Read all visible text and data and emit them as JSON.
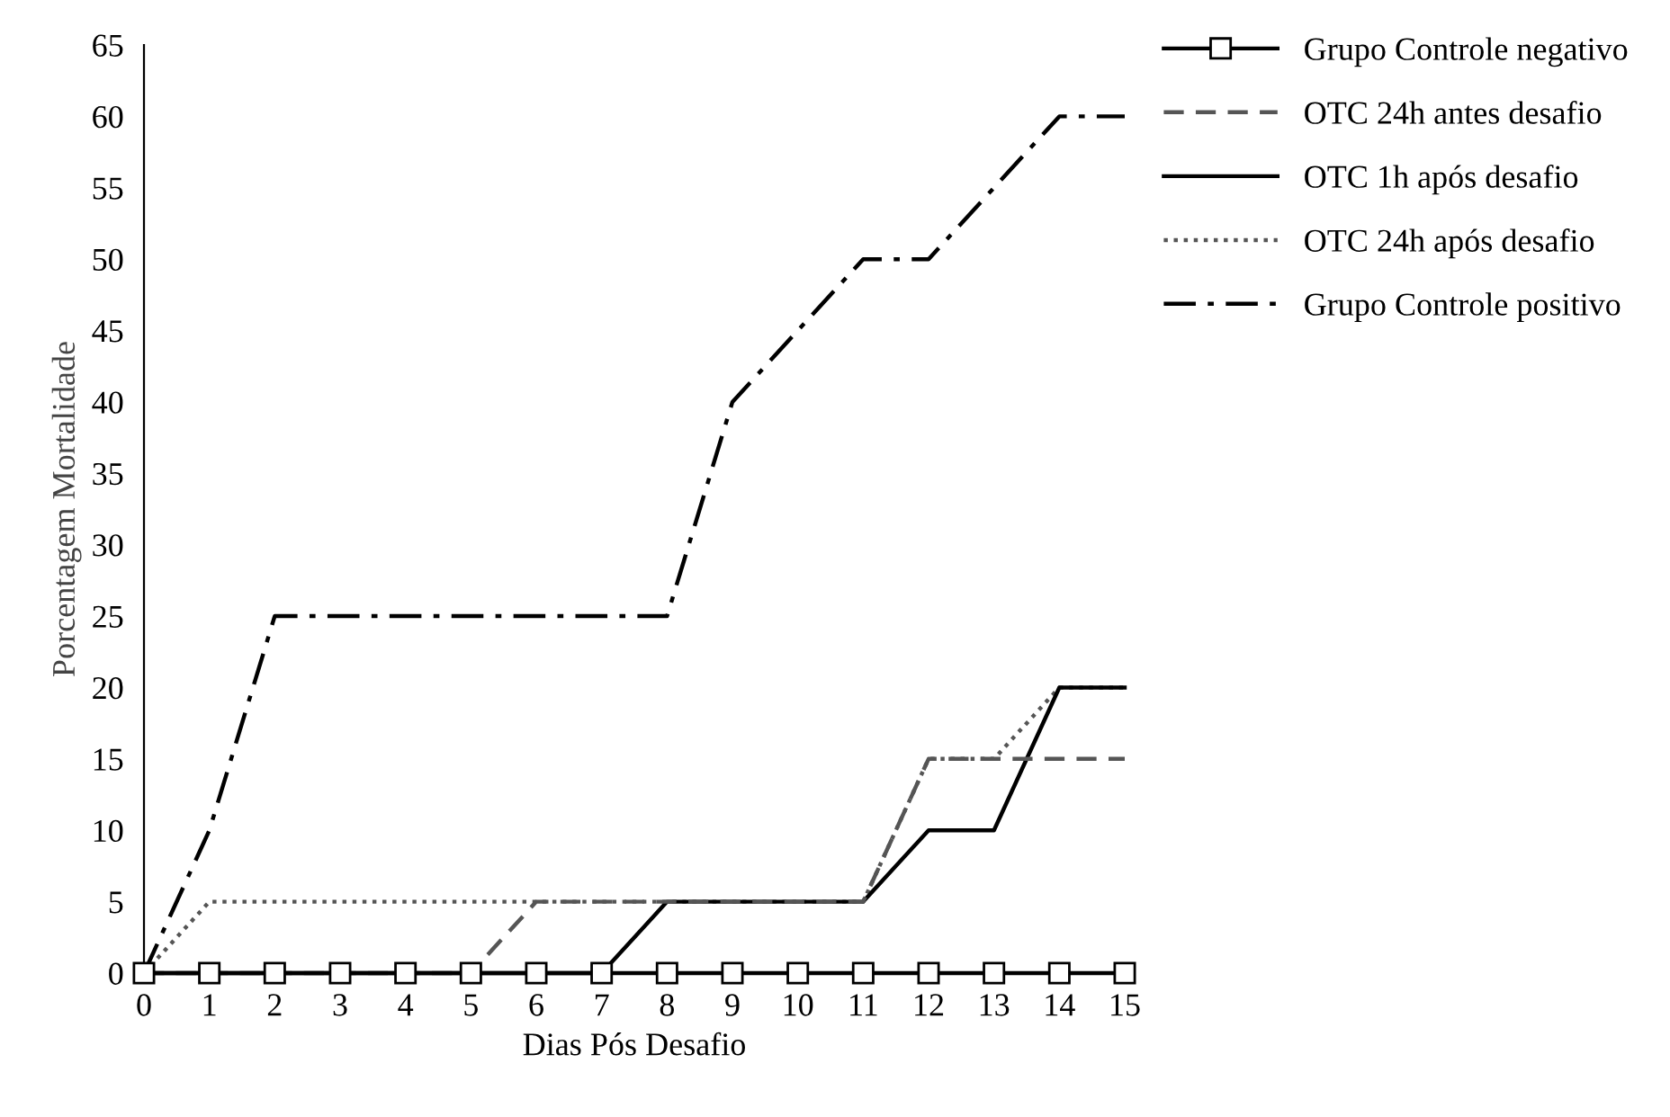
{
  "chart_data": {
    "type": "line",
    "xlabel": "Dias Pós Desafio",
    "ylabel": "Porcentagem Mortalidade",
    "x": [
      0,
      1,
      2,
      3,
      4,
      5,
      6,
      7,
      8,
      9,
      10,
      11,
      12,
      13,
      14,
      15
    ],
    "xlim": [
      0,
      15
    ],
    "xticks": [
      0,
      1,
      2,
      3,
      4,
      5,
      6,
      7,
      8,
      9,
      10,
      11,
      12,
      13,
      14,
      15
    ],
    "ylim": [
      0,
      65
    ],
    "yticks": [
      0,
      5,
      10,
      15,
      20,
      25,
      30,
      35,
      40,
      45,
      50,
      55,
      60,
      65
    ],
    "grid": false,
    "legend": "top right",
    "series": [
      {
        "name": "Grupo Controle negativo",
        "color": "#000000",
        "marker": "square",
        "line_style": "solid",
        "values": [
          0,
          0,
          0,
          0,
          0,
          0,
          0,
          0,
          0,
          0,
          0,
          0,
          0,
          0,
          0,
          0
        ]
      },
      {
        "name": "OTC 24h antes desafio",
        "color": "#555555",
        "marker": "none",
        "line_style": "dashed",
        "values": [
          0,
          0,
          0,
          0,
          0,
          0,
          5,
          5,
          5,
          5,
          5,
          5,
          15,
          15,
          15,
          15
        ]
      },
      {
        "name": "OTC 1h após desafio",
        "color": "#000000",
        "marker": "none",
        "line_style": "solid",
        "values": [
          0,
          0,
          0,
          0,
          0,
          0,
          0,
          0,
          5,
          5,
          5,
          5,
          10,
          10,
          20,
          20
        ]
      },
      {
        "name": "OTC 24h após desafio",
        "color": "#555555",
        "marker": "none",
        "line_style": "dotted",
        "values": [
          0,
          5,
          5,
          5,
          5,
          5,
          5,
          5,
          5,
          5,
          5,
          5,
          15,
          15,
          20,
          20
        ]
      },
      {
        "name": "Grupo Controle positivo",
        "color": "#000000",
        "marker": "none",
        "line_style": "dashdot",
        "values": [
          0,
          10,
          25,
          25,
          25,
          25,
          25,
          25,
          25,
          40,
          45,
          50,
          50,
          55,
          60,
          60
        ]
      }
    ]
  }
}
